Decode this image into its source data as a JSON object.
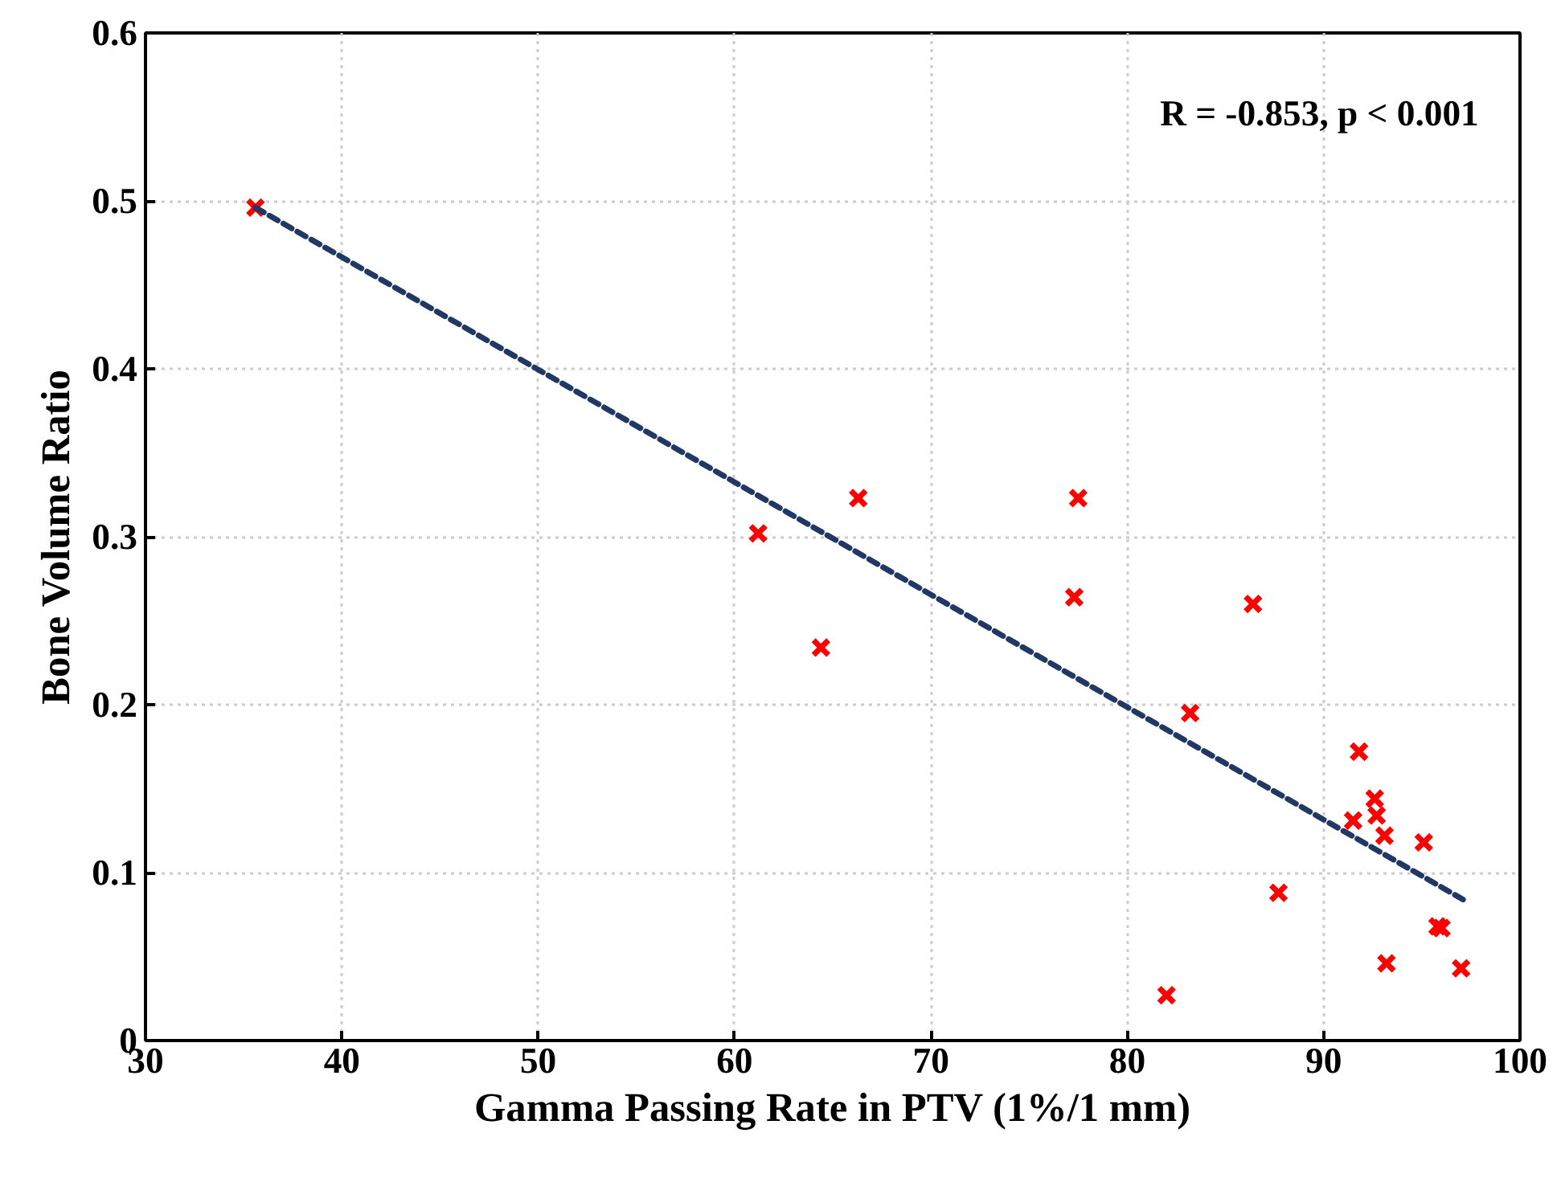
{
  "chart_data": {
    "type": "scatter",
    "xlabel": "Gamma Passing Rate in PTV (1%/1 mm)",
    "ylabel": "Bone Volume Ratio",
    "annotations": [
      "R = -0.853, p < 0.001"
    ],
    "xlim": [
      30,
      100
    ],
    "ylim": [
      0,
      0.6
    ],
    "xticks": [
      30,
      40,
      50,
      60,
      70,
      80,
      90,
      100
    ],
    "yticks": [
      0,
      0.1,
      0.2,
      0.3,
      0.4,
      0.5,
      0.6
    ],
    "grid": true,
    "series": [
      {
        "type": "scatter",
        "color": "#ff0000",
        "marker": "cross",
        "x": [
          35.6,
          61.2,
          66.3,
          64.4,
          77.5,
          77.3,
          86.4,
          83.2,
          87.7,
          82.0,
          91.8,
          92.6,
          92.7,
          91.5,
          93.1,
          95.1,
          95.8,
          96.0,
          93.2,
          97.0
        ],
        "values": [
          0.496,
          0.302,
          0.323,
          0.234,
          0.323,
          0.264,
          0.26,
          0.195,
          0.088,
          0.027,
          0.172,
          0.144,
          0.134,
          0.131,
          0.122,
          0.118,
          0.068,
          0.067,
          0.046,
          0.043
        ]
      },
      {
        "type": "line",
        "color": "#1f3864",
        "line_style": "dashed",
        "marker": "none",
        "x": [
          35.6,
          97.1
        ],
        "values": [
          0.496,
          0.084
        ]
      }
    ]
  }
}
